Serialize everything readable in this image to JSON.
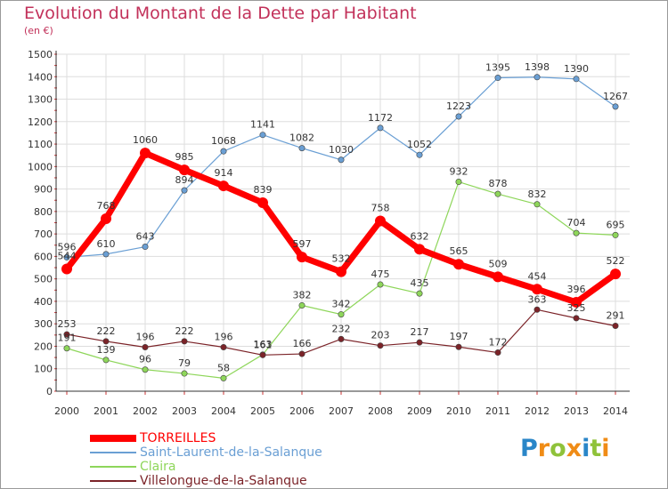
{
  "chart_data": {
    "type": "line",
    "title": "Evolution du Montant de la Dette par Habitant",
    "subtitle": "(en €)",
    "xlabel": "",
    "ylabel": "",
    "x": [
      "2000",
      "2001",
      "2002",
      "2003",
      "2004",
      "2005",
      "2006",
      "2007",
      "2008",
      "2009",
      "2010",
      "2011",
      "2012",
      "2013",
      "2014"
    ],
    "ylim": [
      0,
      1500
    ],
    "yticks": [
      "0",
      "100",
      "200",
      "300",
      "400",
      "500",
      "600",
      "700",
      "800",
      "900",
      "1000",
      "1100",
      "1200",
      "1300",
      "1400",
      "1500"
    ],
    "grid": true,
    "legend_position": "bottom-left",
    "series": [
      {
        "name": "TORREILLES",
        "color": "#ff0000",
        "values": [
          544,
          768,
          1060,
          985,
          914,
          839,
          597,
          532,
          758,
          632,
          565,
          509,
          454,
          396,
          522
        ]
      },
      {
        "name": "Saint-Laurent-de-la-Salanque",
        "color": "#6a9fd4",
        "values": [
          596,
          610,
          643,
          894,
          1068,
          1141,
          1082,
          1030,
          1172,
          1052,
          1223,
          1395,
          1398,
          1390,
          1267
        ]
      },
      {
        "name": "Claira",
        "color": "#8ed65a",
        "values": [
          191,
          139,
          96,
          79,
          58,
          163,
          382,
          342,
          475,
          435,
          932,
          878,
          832,
          704,
          695
        ]
      },
      {
        "name": "Villelongue-de-la-Salanque",
        "color": "#7b2328",
        "values": [
          253,
          222,
          196,
          222,
          196,
          161,
          166,
          232,
          203,
          217,
          197,
          172,
          363,
          325,
          291
        ]
      }
    ]
  },
  "logo": {
    "letters": [
      "P",
      "r",
      "o",
      "x",
      "i",
      "t",
      "i"
    ],
    "colors": [
      "#2a86c8",
      "#f08c16",
      "#8fc23a",
      "#f08c16",
      "#2a86c8",
      "#8fc23a",
      "#f08c16"
    ]
  }
}
